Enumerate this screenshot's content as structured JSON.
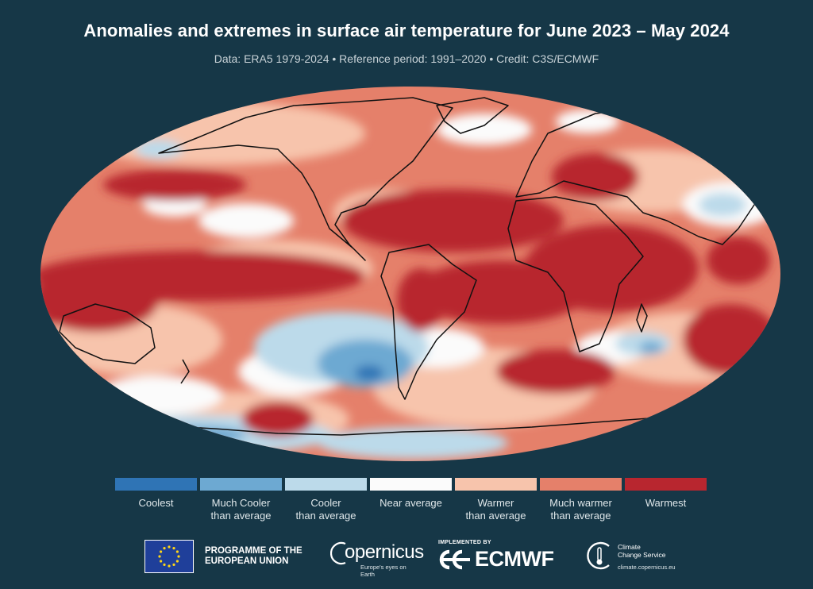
{
  "header": {
    "title": "Anomalies and extremes in surface air temperature for June 2023 – May 2024",
    "subtitle": "Data: ERA5 1979-2024  •  Reference period: 1991–2020  •  Credit: C3S/ECMWF"
  },
  "legend": {
    "items": [
      {
        "label": "Coolest",
        "color": "#2f74b5"
      },
      {
        "label": "Much Cooler\nthan average",
        "color": "#6da9d2"
      },
      {
        "label": "Cooler\nthan average",
        "color": "#bcdaea"
      },
      {
        "label": "Near average",
        "color": "#fbfbfb"
      },
      {
        "label": "Warmer\nthan average",
        "color": "#f7c4ac"
      },
      {
        "label": "Much warmer\nthan average",
        "color": "#e5806a"
      },
      {
        "label": "Warmest",
        "color": "#b8262f"
      }
    ]
  },
  "logos": {
    "eu": "PROGRAMME OF THE\nEUROPEAN UNION",
    "copernicus_word": "opernicus",
    "copernicus_tagline": "Europe's eyes on Earth",
    "ecmwf_implemented": "IMPLEMENTED BY",
    "ecmwf_word": "ECMWF",
    "c3s_name": "Climate\nChange Service",
    "c3s_url": "climate.copernicus.eu"
  },
  "colors": {
    "background": "#163747",
    "coolest": "#2f74b5",
    "much_cooler": "#6da9d2",
    "cooler": "#bcdaea",
    "near": "#fbfbfb",
    "warmer": "#f7c4ac",
    "much_warmer": "#e5806a",
    "warmest": "#b8262f"
  },
  "icons": [
    "eu-flag-icon",
    "copernicus-logo-icon",
    "ecmwf-logo-icon",
    "c3s-logo-icon"
  ]
}
